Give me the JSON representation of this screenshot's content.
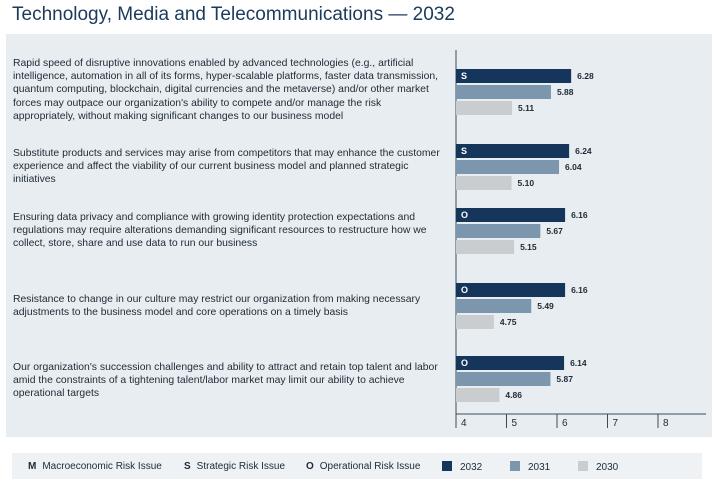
{
  "page_title": "Technology, Media and Telecommunications — 2032",
  "colors": {
    "panel_bg": "#e7edf1",
    "y2032": "#15355a",
    "y2031": "#7b96ad",
    "y2030": "#c9cdd0",
    "axis": "#3a4a5a"
  },
  "chart_data": {
    "type": "bar",
    "orientation": "horizontal",
    "title": "Technology, Media and Telecommunications — 2032",
    "xlim": [
      4,
      8
    ],
    "x_ticks": [
      "4",
      "5",
      "6",
      "7",
      "8"
    ],
    "grid": false,
    "categories": [
      "Rapid speed of disruptive innovations enabled by advanced technologies (e.g., artificial intelligence, automation in all of its forms, hyper-scalable platforms, faster data transmission, quantum computing, blockchain, digital currencies and the metaverse) and/or other market forces may outpace our organization's ability to compete and/or manage the risk appropriately, without making significant changes to our business model",
      "Substitute products and services may arise from competitors that may enhance the customer experience and affect the viability of our current business model and planned strategic initiatives",
      "Ensuring data privacy and compliance with growing identity protection expectations and regulations may require alterations demanding significant resources to restructure how we collect, store, share and use data to run our business",
      "Resistance to change in our culture may restrict our organization from making necessary adjustments to the business model and core operations on a timely basis",
      "Our organization's succession challenges and ability to attract and retain top talent and labor amid the constraints of a tightening talent/labor market may limit our ability to achieve operational targets"
    ],
    "risk_type_codes": [
      "S",
      "S",
      "O",
      "O",
      "O"
    ],
    "series": [
      {
        "name": "2032",
        "values": [
          6.28,
          6.24,
          6.16,
          6.16,
          6.14
        ]
      },
      {
        "name": "2031",
        "values": [
          5.88,
          6.04,
          5.67,
          5.49,
          5.87
        ]
      },
      {
        "name": "2030",
        "values": [
          5.11,
          5.1,
          5.15,
          4.75,
          4.86
        ]
      }
    ],
    "value_labels": [
      [
        "6.28",
        "5.88",
        "5.11"
      ],
      [
        "6.24",
        "6.04",
        "5.10"
      ],
      [
        "6.16",
        "5.67",
        "5.15"
      ],
      [
        "6.16",
        "5.49",
        "4.75"
      ],
      [
        "6.14",
        "5.87",
        "4.86"
      ]
    ]
  },
  "legend": {
    "risk_types": [
      {
        "code": "M",
        "label": "Macroeconomic Risk Issue"
      },
      {
        "code": "S",
        "label": "Strategic Risk Issue"
      },
      {
        "code": "O",
        "label": "Operational Risk Issue"
      }
    ],
    "years": [
      {
        "label": "2032",
        "color": "#15355a"
      },
      {
        "label": "2031",
        "color": "#7b96ad"
      },
      {
        "label": "2030",
        "color": "#c9cdd0"
      }
    ]
  }
}
